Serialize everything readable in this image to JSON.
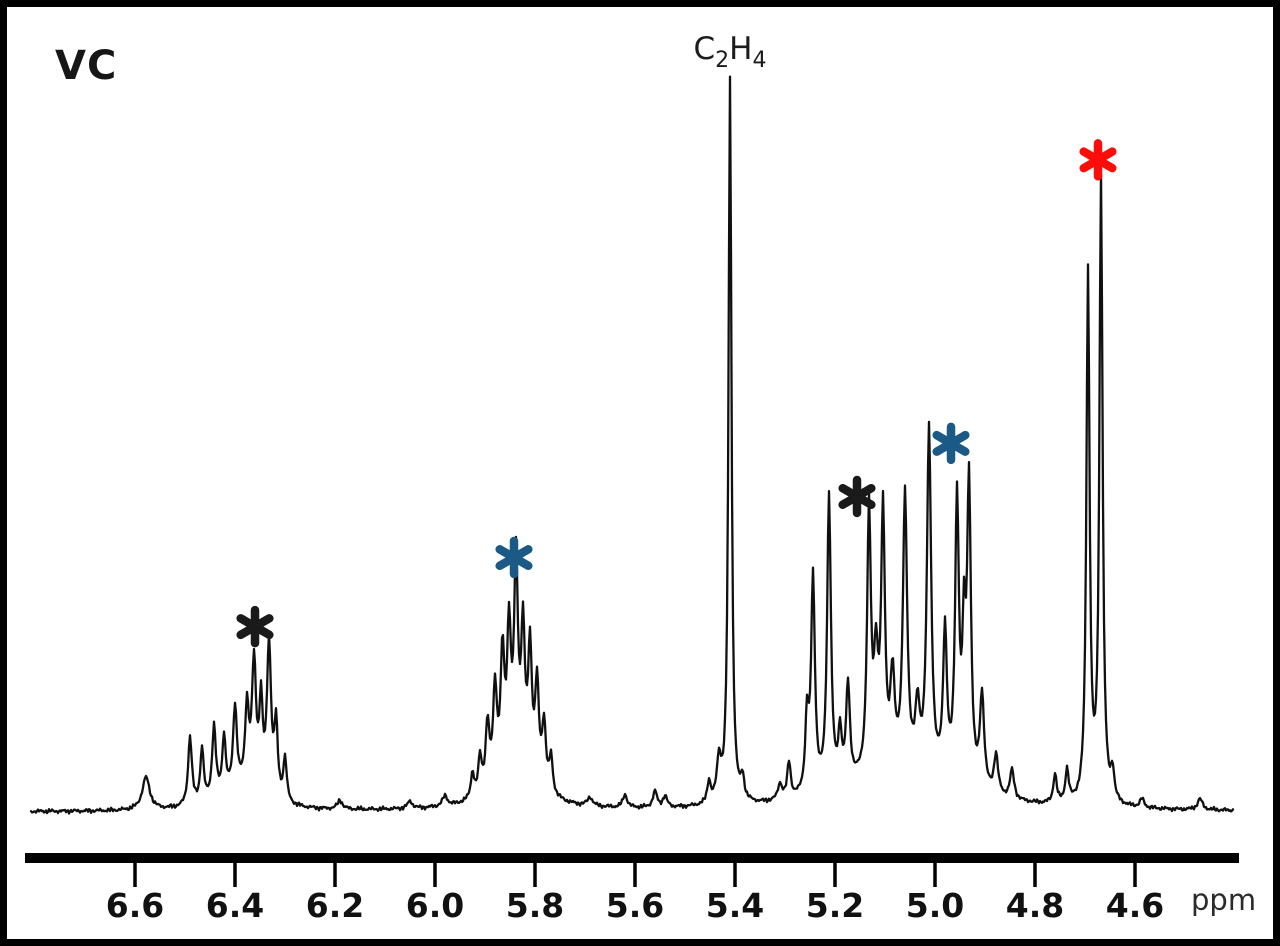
{
  "title": "VC",
  "axis": {
    "unit_label": "ppm",
    "ticks": [
      6.6,
      6.4,
      6.2,
      6.0,
      5.8,
      5.6,
      5.4,
      5.2,
      5.0,
      4.8,
      4.6
    ]
  },
  "solvent_label": {
    "text": "C2H4",
    "parts": [
      {
        "t": "C",
        "sub": false
      },
      {
        "t": "2",
        "sub": true
      },
      {
        "t": "H",
        "sub": false
      },
      {
        "t": "4",
        "sub": true
      }
    ],
    "ppm": 5.41
  },
  "colors": {
    "trace": "#101010",
    "axis": "#000000",
    "tick_text": "#111111",
    "black": "#1a1a1a",
    "blue": "#1b5a87",
    "red": "#fb0d0a"
  },
  "chart_data": {
    "type": "line",
    "title": "VC",
    "xlabel": "ppm",
    "x_axis": {
      "min": 4.35,
      "max": 6.82,
      "reversed": true,
      "ticks": [
        6.6,
        6.4,
        6.2,
        6.0,
        5.8,
        5.6,
        5.4,
        5.2,
        5.0,
        4.8,
        4.6
      ]
    },
    "grid": false,
    "legend": false,
    "solvent_peak": {
      "label": "C2H4",
      "ppm": 5.41,
      "intensity": 1.0
    },
    "annotations": [
      {
        "symbol": "asterisk",
        "color_key": "black",
        "ppm": 6.36,
        "y_frac": 0.255
      },
      {
        "symbol": "asterisk",
        "color_key": "blue",
        "ppm": 5.842,
        "y_frac": 0.35
      },
      {
        "symbol": "asterisk",
        "color_key": "black",
        "ppm": 5.156,
        "y_frac": 0.434
      },
      {
        "symbol": "asterisk",
        "color_key": "blue",
        "ppm": 4.968,
        "y_frac": 0.507
      },
      {
        "symbol": "asterisk",
        "color_key": "red",
        "ppm": 4.674,
        "y_frac": 0.897
      }
    ],
    "peaks": [
      [
        6.578,
        0.045,
        0.009
      ],
      [
        6.49,
        0.095,
        0.0045
      ],
      [
        6.466,
        0.075,
        0.004
      ],
      [
        6.442,
        0.1,
        0.0045
      ],
      [
        6.422,
        0.08,
        0.004
      ],
      [
        6.4,
        0.115,
        0.0045
      ],
      [
        6.376,
        0.11,
        0.0045
      ],
      [
        6.362,
        0.175,
        0.005
      ],
      [
        6.348,
        0.12,
        0.004
      ],
      [
        6.332,
        0.21,
        0.005
      ],
      [
        6.318,
        0.1,
        0.004
      ],
      [
        6.3,
        0.06,
        0.004
      ],
      [
        6.39,
        0.025,
        0.05
      ],
      [
        6.19,
        0.012,
        0.006
      ],
      [
        6.05,
        0.01,
        0.006
      ],
      [
        5.98,
        0.014,
        0.006
      ],
      [
        5.925,
        0.035,
        0.004
      ],
      [
        5.91,
        0.05,
        0.004
      ],
      [
        5.895,
        0.09,
        0.0045
      ],
      [
        5.88,
        0.13,
        0.0045
      ],
      [
        5.865,
        0.165,
        0.0045
      ],
      [
        5.852,
        0.19,
        0.0045
      ],
      [
        5.838,
        0.28,
        0.0045
      ],
      [
        5.824,
        0.19,
        0.0045
      ],
      [
        5.81,
        0.175,
        0.0045
      ],
      [
        5.796,
        0.135,
        0.0045
      ],
      [
        5.782,
        0.09,
        0.0045
      ],
      [
        5.768,
        0.05,
        0.004
      ],
      [
        5.84,
        0.045,
        0.05
      ],
      [
        5.69,
        0.012,
        0.006
      ],
      [
        5.62,
        0.018,
        0.005
      ],
      [
        5.56,
        0.022,
        0.005
      ],
      [
        5.54,
        0.015,
        0.005
      ],
      [
        5.452,
        0.03,
        0.004
      ],
      [
        5.432,
        0.055,
        0.005
      ],
      [
        5.41,
        1.0,
        0.0035
      ],
      [
        5.385,
        0.03,
        0.004
      ],
      [
        5.31,
        0.022,
        0.005
      ],
      [
        5.292,
        0.05,
        0.004
      ],
      [
        5.256,
        0.1,
        0.004
      ],
      [
        5.244,
        0.295,
        0.0045
      ],
      [
        5.212,
        0.405,
        0.0045
      ],
      [
        5.19,
        0.07,
        0.004
      ],
      [
        5.174,
        0.135,
        0.0045
      ],
      [
        5.132,
        0.36,
        0.0045
      ],
      [
        5.118,
        0.14,
        0.005
      ],
      [
        5.104,
        0.35,
        0.0045
      ],
      [
        5.085,
        0.12,
        0.005
      ],
      [
        5.06,
        0.375,
        0.005
      ],
      [
        5.035,
        0.08,
        0.005
      ],
      [
        5.012,
        0.475,
        0.005
      ],
      [
        4.98,
        0.2,
        0.0045
      ],
      [
        4.956,
        0.385,
        0.0045
      ],
      [
        4.942,
        0.18,
        0.004
      ],
      [
        4.932,
        0.41,
        0.0045
      ],
      [
        4.906,
        0.13,
        0.005
      ],
      [
        4.878,
        0.055,
        0.005
      ],
      [
        4.846,
        0.04,
        0.005
      ],
      [
        5.07,
        0.05,
        0.13
      ],
      [
        4.76,
        0.04,
        0.004
      ],
      [
        4.736,
        0.045,
        0.004
      ],
      [
        4.694,
        0.73,
        0.0038
      ],
      [
        4.668,
        0.86,
        0.0038
      ],
      [
        4.645,
        0.04,
        0.004
      ],
      [
        4.586,
        0.012,
        0.005
      ],
      [
        4.47,
        0.015,
        0.006
      ]
    ]
  }
}
